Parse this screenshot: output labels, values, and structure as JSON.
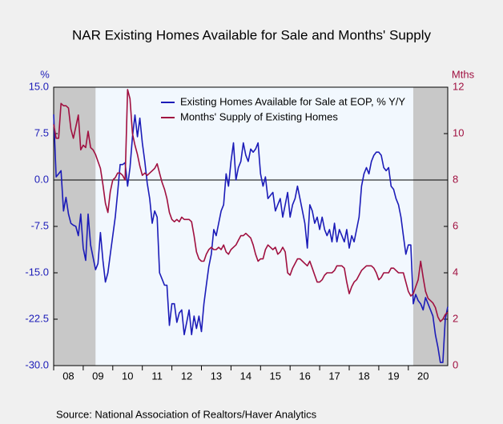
{
  "chart_data": {
    "type": "line",
    "title": "NAR Existing Homes Available for Sale and Months' Supply",
    "y_label": "%",
    "y2_label": "Mths",
    "note": "Source:  National Association of Realtors/Haver Analytics",
    "categories": [
      null,
      null,
      null,
      null,
      null,
      null,
      "08",
      null,
      null,
      null,
      null,
      null,
      null,
      null,
      null,
      null,
      null,
      null,
      "09",
      null,
      null,
      null,
      null,
      null,
      null,
      null,
      null,
      null,
      null,
      null,
      "10",
      null,
      null,
      null,
      null,
      null,
      null,
      null,
      null,
      null,
      null,
      null,
      "11",
      null,
      null,
      null,
      null,
      null,
      null,
      null,
      null,
      null,
      null,
      null,
      "12",
      null,
      null,
      null,
      null,
      null,
      null,
      null,
      null,
      null,
      null,
      null,
      "13",
      null,
      null,
      null,
      null,
      null,
      null,
      null,
      null,
      null,
      null,
      null,
      "14",
      null,
      null,
      null,
      null,
      null,
      null,
      null,
      null,
      null,
      null,
      null,
      "15",
      null,
      null,
      null,
      null,
      null,
      null,
      null,
      null,
      null,
      null,
      null,
      "16",
      null,
      null,
      null,
      null,
      null,
      null,
      null,
      null,
      null,
      null,
      null,
      "17",
      null,
      null,
      null,
      null,
      null,
      null,
      null,
      null,
      null,
      null,
      null,
      "18",
      null,
      null,
      null,
      null,
      null,
      null,
      null,
      null,
      null,
      null,
      null,
      "19",
      null,
      null,
      null,
      null,
      null,
      null,
      null,
      null,
      null,
      null,
      null,
      "20",
      null,
      null,
      null,
      null,
      null,
      null,
      null,
      null,
      null,
      null
    ],
    "shaded_periods": [
      [
        0,
        17
      ],
      [
        146,
        160
      ]
    ],
    "ylim": [
      -30,
      15
    ],
    "yticks": [
      {
        "value": 15,
        "label": "15.0"
      },
      7.5,
      {
        "value": 0,
        "label": "0.0"
      },
      -7.5,
      {
        "value": -15,
        "label": "-15.0"
      },
      -22.5,
      {
        "value": -30,
        "label": "-30.0"
      }
    ],
    "y2lim": [
      0,
      12
    ],
    "y2ticks": [
      0,
      2,
      4,
      6,
      8,
      10,
      12
    ],
    "zero_line": true,
    "legend": "top",
    "series": [
      {
        "name": "Existing Homes Available for Sale at EOP, % Y/Y",
        "color": "#1c1cb8",
        "values": [
          10.6,
          0.5,
          1.0,
          1.5,
          -5.0,
          -2.8,
          -5.5,
          -7.0,
          -7.3,
          -7.5,
          -9.0,
          -5.5,
          -11.0,
          -13.0,
          -5.5,
          -10.5,
          -12.5,
          -14.5,
          -13.5,
          -8.5,
          -13.0,
          -16.5,
          -15.0,
          -12.0,
          -9.0,
          -6.0,
          -2.0,
          2.5,
          2.5,
          2.8,
          -1.0,
          2.0,
          7.0,
          10.5,
          7.0,
          10.0,
          6.0,
          3.0,
          -0.5,
          -3.0,
          -7.0,
          -5.0,
          -6.0,
          -15.0,
          -16.0,
          -17.0,
          -17.0,
          -23.5,
          -20.0,
          -20.0,
          -23.0,
          -21.5,
          -21.0,
          -25.0,
          -23.0,
          -21.0,
          -25.0,
          -22.0,
          -24.0,
          -22.0,
          -24.5,
          -20.0,
          -17.0,
          -14.0,
          -12.0,
          -8.0,
          -9.0,
          -7.0,
          -5.0,
          -4.0,
          1.0,
          -1.0,
          3.0,
          6.0,
          0.0,
          2.0,
          3.0,
          6.0,
          4.0,
          3.0,
          5.0,
          4.5,
          5.0,
          6.0,
          1.0,
          -1.0,
          0.5,
          -3.0,
          -2.5,
          -2.0,
          -5.0,
          -4.0,
          -3.0,
          -6.0,
          -4.0,
          -2.0,
          -6.0,
          -4.0,
          -3.0,
          -1.0,
          -3.0,
          -5.0,
          -7.0,
          -11.0,
          -4.0,
          -5.0,
          -7.0,
          -6.0,
          -8.0,
          -6.0,
          -8.0,
          -9.0,
          -8.0,
          -10.0,
          -7.0,
          -10.0,
          -8.0,
          -9.0,
          -10.0,
          -8.0,
          -11.0,
          -9.0,
          -10.0,
          -8.0,
          -6.0,
          -1.0,
          1.0,
          2.0,
          1.0,
          3.0,
          4.0,
          4.5,
          4.5,
          4.0,
          2.0,
          1.5,
          2.0,
          -1.0,
          -1.5,
          -3.0,
          -4.0,
          -6.0,
          -9.0,
          -12.0,
          -10.5,
          -10.5,
          -20.0,
          -18.5,
          -19.5,
          -20.0,
          -21.0,
          -19.0,
          -20.0,
          -21.0,
          -22.0,
          -25.0,
          -27.0,
          -29.5,
          -29.5,
          -22.5,
          -20.5
        ]
      },
      {
        "name": "Months' Supply of Existing Homes",
        "color": "#a01040",
        "axis": "y2",
        "values": [
          10.4,
          9.8,
          9.8,
          11.3,
          11.2,
          11.2,
          11.1,
          10.2,
          9.8,
          10.3,
          10.8,
          9.3,
          9.5,
          9.4,
          10.1,
          9.4,
          9.3,
          9.1,
          8.8,
          8.5,
          7.8,
          7.0,
          6.6,
          7.5,
          8.0,
          8.1,
          8.3,
          8.3,
          8.2,
          8.0,
          11.9,
          11.5,
          10.0,
          9.5,
          9.1,
          8.6,
          8.2,
          8.3,
          8.2,
          8.3,
          8.4,
          8.5,
          8.7,
          8.3,
          7.9,
          7.6,
          7.2,
          6.6,
          6.3,
          6.2,
          6.3,
          6.2,
          6.4,
          6.3,
          6.3,
          6.3,
          6.2,
          5.6,
          4.9,
          4.6,
          4.5,
          4.5,
          4.8,
          5.0,
          5.1,
          5.0,
          5.0,
          5.1,
          5.0,
          5.2,
          4.9,
          4.8,
          5.0,
          5.1,
          5.2,
          5.4,
          5.6,
          5.6,
          5.7,
          5.6,
          5.5,
          5.2,
          4.8,
          4.5,
          4.6,
          4.6,
          5.0,
          5.2,
          5.1,
          5.0,
          5.1,
          4.8,
          4.9,
          5.1,
          4.9,
          4.0,
          3.9,
          4.2,
          4.4,
          4.6,
          4.6,
          4.5,
          4.4,
          4.3,
          4.5,
          4.2,
          3.9,
          3.6,
          3.6,
          3.7,
          3.9,
          4.0,
          4.0,
          4.0,
          4.1,
          4.3,
          4.3,
          4.3,
          4.2,
          3.6,
          3.1,
          3.4,
          3.6,
          3.7,
          3.9,
          4.1,
          4.2,
          4.3,
          4.3,
          4.3,
          4.2,
          4.0,
          3.7,
          3.8,
          4.0,
          4.0,
          4.0,
          4.2,
          4.2,
          4.1,
          4.0,
          4.0,
          4.0,
          3.6,
          3.2,
          3.0,
          3.1,
          3.4,
          3.7,
          4.5,
          3.8,
          3.2,
          2.9,
          2.8,
          2.7,
          2.5,
          2.1,
          1.9,
          2.0,
          2.2,
          2.3
        ]
      }
    ]
  }
}
